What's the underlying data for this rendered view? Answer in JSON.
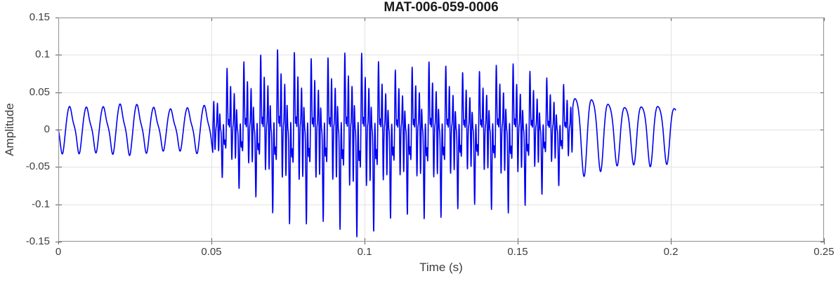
{
  "chart_data": {
    "type": "line",
    "title": "MAT-006-059-0006",
    "xlabel": "Time (s)",
    "ylabel": "Amplitude",
    "xlim": [
      0,
      0.25
    ],
    "ylim": [
      -0.15,
      0.15
    ],
    "grid": true,
    "box": true,
    "x_ticks": {
      "values": [
        0,
        0.05,
        0.1,
        0.15,
        0.2,
        0.25
      ],
      "labels": [
        "0",
        "0.05",
        "0.1",
        "0.15",
        "0.2",
        "0.25"
      ]
    },
    "y_ticks": {
      "values": [
        0.15,
        0.1,
        0.05,
        0,
        -0.05,
        -0.1,
        -0.15
      ],
      "labels": [
        "0.15",
        "0.1",
        "0.05",
        "0",
        "-0.05",
        "-0.1",
        "-0.15"
      ]
    },
    "colors": {
      "line": "#0000f2",
      "grid": "#e2e2e2",
      "axis_box": "#9c9c9c",
      "tick": "#5f5f5f",
      "tick_label": "#3d3d3d",
      "title": "#1a1a1a",
      "background": "#ffffff"
    },
    "description": "Acoustic waveform: quiet ~182 Hz tone (about +0.035/-0.03) from 0 to 0.05 s, loud harmonic-rich voiced burst from 0.05 to 0.168 s with positive peaks up to +0.118 near t=0.063 s and negative troughs down to -0.13 near t=0.10 s, then a decaying ~185 Hz tone (+-0.05 falling to +-0.04) ending at 0.2016 s; no data from 0.202 to 0.25 s.",
    "signal": {
      "sample_rate_hz": 18000,
      "t_start": 0.0,
      "t_end": 0.2016,
      "wobble": [
        [
          41.0,
          0.07,
          1.3
        ],
        [
          13.3,
          0.05,
          0.4
        ]
      ],
      "segments": [
        {
          "name": "lead-in-tone",
          "t0": 0.0,
          "t1": 0.0505,
          "f0_hz": 182,
          "norm": 1.05,
          "harmonics": [
            [
              1,
              0.88,
              3.4
            ],
            [
              2,
              0.2,
              1.2
            ],
            [
              3,
              0.07,
              0.5
            ]
          ],
          "env_pos": [
            [
              0.0,
              0.034
            ],
            [
              0.01,
              0.037
            ],
            [
              0.02,
              0.04
            ],
            [
              0.03,
              0.036
            ],
            [
              0.04,
              0.038
            ],
            [
              0.0505,
              0.04
            ]
          ],
          "env_neg": [
            [
              0.0,
              0.028
            ],
            [
              0.01,
              0.03
            ],
            [
              0.02,
              0.031
            ],
            [
              0.03,
              0.028
            ],
            [
              0.04,
              0.03
            ],
            [
              0.0505,
              0.032
            ]
          ]
        },
        {
          "name": "voiced-burst",
          "t0": 0.0505,
          "t1": 0.168,
          "f0_hz": 182,
          "norm": 1.32,
          "harmonics": [
            [
              1,
              0.34,
              0.3
            ],
            [
              2,
              0.3,
              1.0
            ],
            [
              5,
              0.52,
              0.6
            ],
            [
              9,
              0.28,
              0.2
            ]
          ],
          "env_pos": [
            [
              0.0505,
              0.055
            ],
            [
              0.055,
              0.09
            ],
            [
              0.058,
              0.1
            ],
            [
              0.063,
              0.115
            ],
            [
              0.07,
              0.11
            ],
            [
              0.08,
              0.1
            ],
            [
              0.09,
              0.105
            ],
            [
              0.1,
              0.098
            ],
            [
              0.11,
              0.092
            ],
            [
              0.12,
              0.096
            ],
            [
              0.13,
              0.09
            ],
            [
              0.14,
              0.092
            ],
            [
              0.15,
              0.086
            ],
            [
              0.155,
              0.08
            ],
            [
              0.16,
              0.075
            ],
            [
              0.165,
              0.062
            ],
            [
              0.168,
              0.05
            ]
          ],
          "env_neg": [
            [
              0.0505,
              0.045
            ],
            [
              0.055,
              0.075
            ],
            [
              0.06,
              0.09
            ],
            [
              0.07,
              0.108
            ],
            [
              0.08,
              0.122
            ],
            [
              0.09,
              0.127
            ],
            [
              0.095,
              0.13
            ],
            [
              0.105,
              0.13
            ],
            [
              0.115,
              0.122
            ],
            [
              0.125,
              0.116
            ],
            [
              0.135,
              0.112
            ],
            [
              0.145,
              0.106
            ],
            [
              0.15,
              0.1
            ],
            [
              0.155,
              0.094
            ],
            [
              0.16,
              0.085
            ],
            [
              0.165,
              0.07
            ],
            [
              0.168,
              0.055
            ]
          ]
        },
        {
          "name": "tail-tone",
          "t0": 0.168,
          "t1": 0.2016,
          "f0_hz": 185,
          "norm": 1.0,
          "harmonics": [
            [
              1,
              0.9,
              0.0
            ],
            [
              2,
              0.16,
              1.3
            ]
          ],
          "env_pos": [
            [
              0.168,
              0.05
            ],
            [
              0.175,
              0.048
            ],
            [
              0.185,
              0.042
            ],
            [
              0.195,
              0.04
            ],
            [
              0.2016,
              0.038
            ]
          ],
          "env_neg": [
            [
              0.168,
              0.055
            ],
            [
              0.175,
              0.052
            ],
            [
              0.185,
              0.048
            ],
            [
              0.195,
              0.046
            ],
            [
              0.2016,
              0.042
            ]
          ]
        }
      ]
    }
  }
}
